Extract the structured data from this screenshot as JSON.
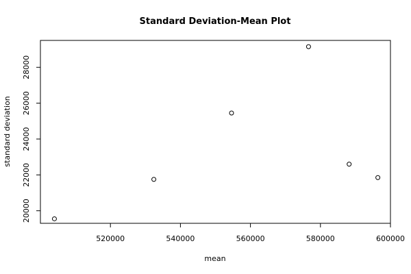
{
  "chart_data": {
    "type": "scatter",
    "title": "Standard Deviation-Mean Plot",
    "xlabel": "mean",
    "ylabel": "standard deviation",
    "xlim": [
      500000,
      600000
    ],
    "ylim": [
      19300,
      29500
    ],
    "x_ticks": [
      520000,
      540000,
      560000,
      580000,
      600000
    ],
    "y_ticks": [
      20000,
      22000,
      24000,
      26000,
      28000
    ],
    "grid": false,
    "points": [
      {
        "x": 504000,
        "y": 19550
      },
      {
        "x": 532400,
        "y": 21750
      },
      {
        "x": 554600,
        "y": 25450
      },
      {
        "x": 576600,
        "y": 29150
      },
      {
        "x": 588200,
        "y": 22600
      },
      {
        "x": 596400,
        "y": 21850
      }
    ]
  }
}
